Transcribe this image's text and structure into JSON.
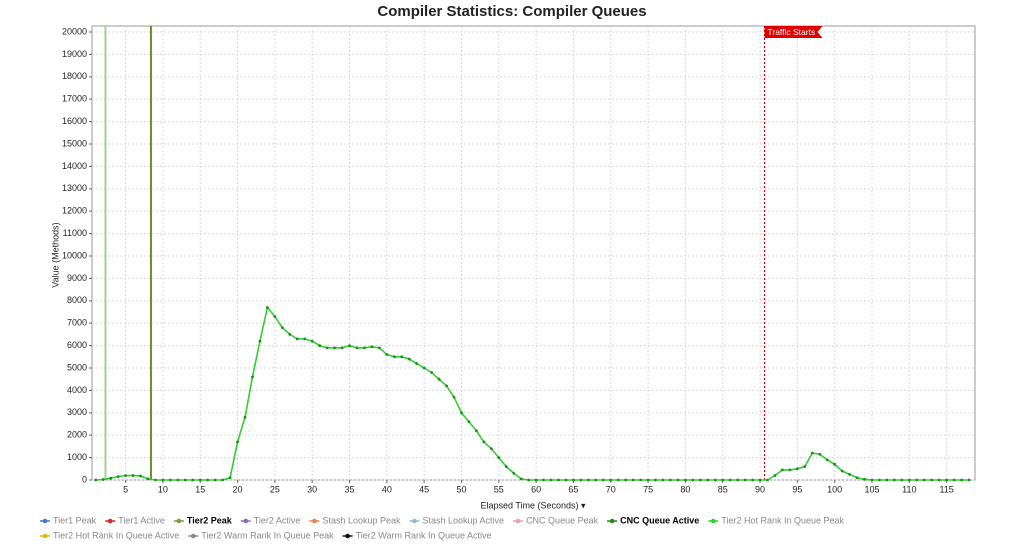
{
  "chart_data": {
    "type": "line",
    "title": "Compiler Statistics: Compiler Queues",
    "x_label": "Elapsed Time (Seconds) ▾",
    "y_label": "Value (Methods)",
    "xlim": [
      0.5,
      118.8
    ],
    "ylim": [
      0,
      20000
    ],
    "xticks": [
      5,
      10,
      15,
      20,
      25,
      30,
      35,
      40,
      45,
      50,
      55,
      60,
      65,
      70,
      75,
      80,
      85,
      90,
      95,
      100,
      105,
      110,
      115
    ],
    "yticks": [
      0,
      1000,
      2000,
      3000,
      4000,
      5000,
      6000,
      7000,
      8000,
      9000,
      10000,
      11000,
      12000,
      13000,
      14000,
      15000,
      16000,
      17000,
      18000,
      19000,
      20000
    ],
    "grid": true,
    "x": [
      1,
      2,
      3,
      4,
      5,
      6,
      7,
      8,
      9,
      10,
      11,
      12,
      13,
      14,
      15,
      16,
      17,
      18,
      19,
      20,
      21,
      22,
      23,
      24,
      25,
      26,
      27,
      28,
      29,
      30,
      31,
      32,
      33,
      34,
      35,
      36,
      37,
      38,
      39,
      40,
      41,
      42,
      43,
      44,
      45,
      46,
      47,
      48,
      49,
      50,
      51,
      52,
      53,
      54,
      55,
      56,
      57,
      58,
      59,
      60,
      61,
      62,
      63,
      64,
      65,
      66,
      67,
      68,
      69,
      70,
      71,
      72,
      73,
      74,
      75,
      76,
      77,
      78,
      79,
      80,
      81,
      82,
      83,
      84,
      85,
      86,
      87,
      88,
      89,
      90,
      91,
      92,
      93,
      94,
      95,
      96,
      97,
      98,
      99,
      100,
      101,
      102,
      103,
      104,
      105,
      106,
      107,
      108,
      109,
      110,
      111,
      112,
      113,
      114,
      115,
      116,
      117,
      118
    ],
    "series": [
      {
        "name": "Tier1 Peak",
        "color": "#3a7dc9"
      },
      {
        "name": "Tier1 Active",
        "color": "#d9262b"
      },
      {
        "name": "Tier2 Peak",
        "color": "#7a9c3a",
        "highlighted": true
      },
      {
        "name": "Tier2 Active",
        "color": "#8c6bb1"
      },
      {
        "name": "Stash Lookup Peak",
        "color": "#e8804a"
      },
      {
        "name": "Stash Lookup Active",
        "color": "#8fb8d8"
      },
      {
        "name": "CNC Queue Peak",
        "color": "#f0a0a0"
      },
      {
        "name": "CNC Queue Active",
        "color": "#1a8f1a",
        "highlighted": true
      },
      {
        "name": "Tier2 Hot Rank In Queue Peak",
        "color": "#33cc33",
        "point_color": "#1a8f1a",
        "values": [
          0,
          20,
          80,
          150,
          200,
          200,
          180,
          50,
          0,
          0,
          0,
          0,
          0,
          0,
          0,
          0,
          0,
          0,
          100,
          1700,
          2800,
          4600,
          6200,
          7700,
          7300,
          6800,
          6500,
          6300,
          6300,
          6200,
          6000,
          5900,
          5900,
          5900,
          6000,
          5900,
          5900,
          5950,
          5900,
          5600,
          5500,
          5500,
          5400,
          5200,
          5000,
          4800,
          4500,
          4200,
          3700,
          3000,
          2600,
          2200,
          1700,
          1400,
          1000,
          600,
          300,
          50,
          0,
          0,
          0,
          0,
          0,
          0,
          0,
          0,
          0,
          0,
          0,
          0,
          0,
          0,
          0,
          0,
          0,
          0,
          0,
          0,
          0,
          0,
          0,
          0,
          0,
          0,
          0,
          0,
          0,
          0,
          0,
          0,
          0,
          200,
          450,
          450,
          500,
          600,
          1200,
          1150,
          900,
          700,
          400,
          250,
          100,
          30,
          0,
          0,
          0,
          0,
          0,
          0,
          0,
          0,
          0,
          0,
          0,
          0,
          0,
          0
        ]
      },
      {
        "name": "Tier2 Hot Rank In Queue Active",
        "color": "#e6b800"
      },
      {
        "name": "Tier2 Warm Rank In Queue Peak",
        "color": "#888888"
      },
      {
        "name": "Tier2 Warm Rank In Queue Active",
        "color": "#111111"
      }
    ],
    "markers": [
      {
        "x": 2.3,
        "color": "#a8d08d"
      },
      {
        "x": 8.4,
        "color": "#6b8e23"
      }
    ],
    "annotations": [
      {
        "x": 90.6,
        "label": "Traffic Starts",
        "color": "#e00000"
      }
    ]
  }
}
